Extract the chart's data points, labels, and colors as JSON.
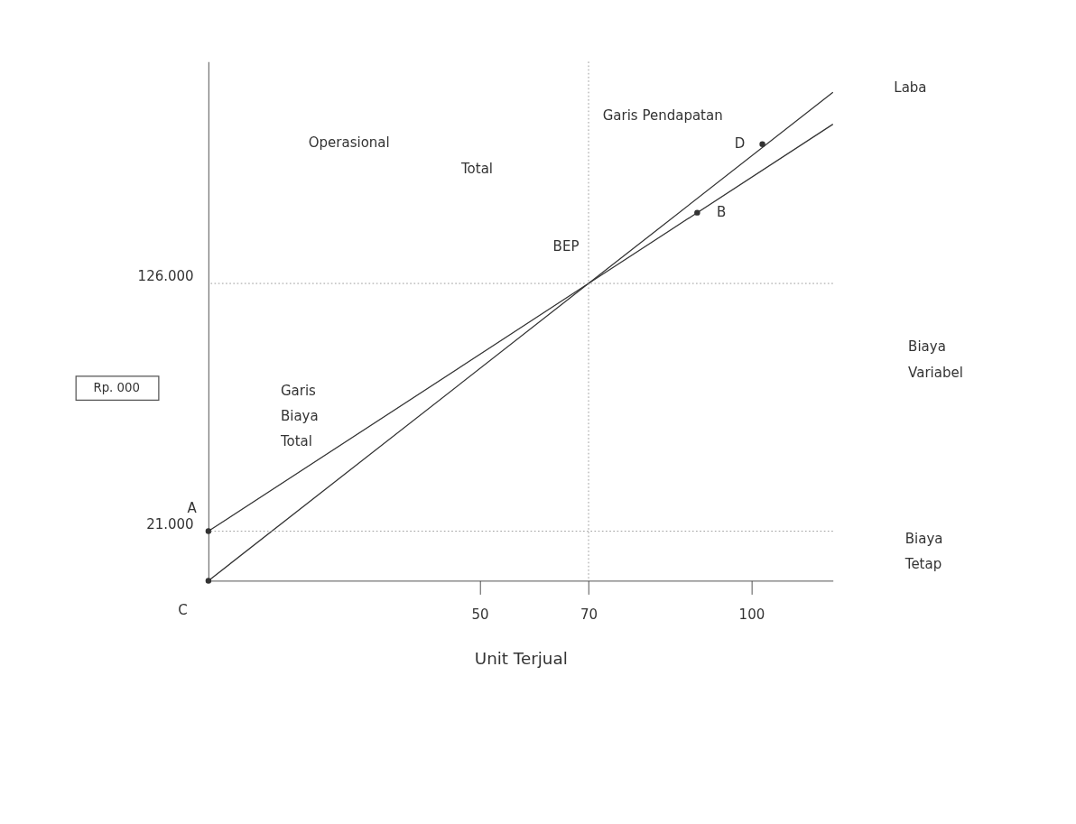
{
  "chart_data": {
    "type": "line",
    "xlabel": "Unit Terjual",
    "ylabel": "Rp. 000",
    "xlim": [
      0,
      115
    ],
    "xticks": [
      50,
      70,
      100
    ],
    "ylim": [
      0,
      220000
    ],
    "yticks": [
      {
        "value": 21000,
        "label": "21.000"
      },
      {
        "value": 126000,
        "label": "126.000"
      }
    ],
    "series": [
      {
        "color": "#333333",
        "x": [
          0,
          70,
          115
        ],
        "values": [
          0,
          126000,
          207000
        ]
      },
      {
        "color": "#333333",
        "x": [
          0,
          70,
          115
        ],
        "values": [
          21000,
          126000,
          193500
        ]
      },
      {
        "type": "scatter",
        "color": "#333333",
        "marker": "circle",
        "x": [
          0,
          0,
          90,
          102
        ],
        "values": [
          21000,
          0,
          156000,
          185000
        ]
      }
    ],
    "ref_lines": [
      {
        "axis": "y",
        "value": 21000,
        "color": "#888888",
        "line_style": "dotted"
      },
      {
        "axis": "y",
        "value": 126000,
        "color": "#888888",
        "line_style": "dotted"
      },
      {
        "axis": "x",
        "value": 70,
        "color": "#888888",
        "line_style": "dotted"
      }
    ],
    "annotations": [
      {
        "text": "A",
        "x": 0,
        "y": 21000
      },
      {
        "text": "C",
        "x": 0,
        "y": 0
      },
      {
        "text": "B",
        "x": 90,
        "y": 156000
      },
      {
        "text": "D",
        "x": 102,
        "y": 185000
      },
      {
        "text": "BEP",
        "x": 70,
        "y": 126000
      },
      "Laba",
      "Garis Pendapatan",
      "Operasional",
      "Total",
      "Garis Biaya Total",
      "Biaya Variabel",
      "Biaya Tetap"
    ],
    "grid": false,
    "line_style": "solid"
  }
}
